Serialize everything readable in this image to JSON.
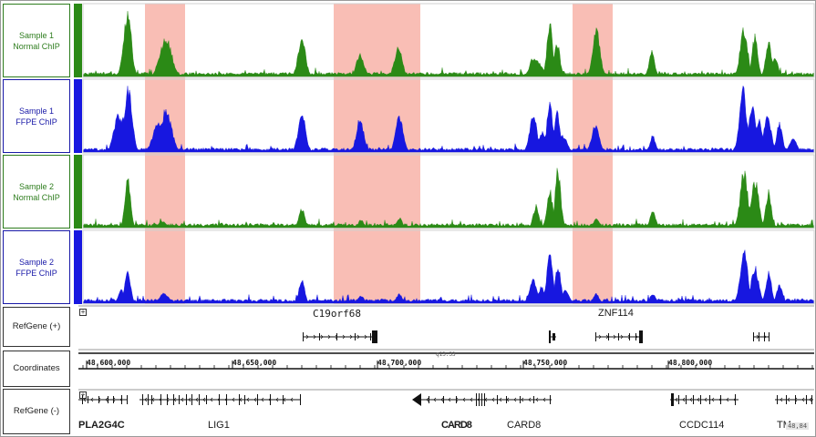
{
  "tracks": {
    "sample1_normal": {
      "line1": "Sample 1",
      "line2": "Normal ChIP",
      "color": "#2b8a16"
    },
    "sample1_ffpe": {
      "line1": "Sample 1",
      "line2": "FFPE ChIP",
      "color": "#1717e0"
    },
    "sample2_normal": {
      "line1": "Sample 2",
      "line2": "Normal ChIP",
      "color": "#2b8a16"
    },
    "sample2_ffpe": {
      "line1": "Sample 2",
      "line2": "FFPE ChIP",
      "color": "#1717e0"
    },
    "refgene_plus": {
      "label": "RefGene (+)"
    },
    "coordinates": {
      "label": "Coordinates"
    },
    "refgene_minus": {
      "label": "RefGene (-)"
    }
  },
  "highlight_color": "#f8b3a8",
  "coordinates": {
    "ticks": [
      "48,600,000",
      "48,650,000",
      "48,700,000",
      "48,750,000",
      "48,800,000"
    ],
    "band": "q13.33",
    "end_label": "48,84"
  },
  "genes_plus": {
    "c19orf68": "C19orf68",
    "znf114": "ZNF114"
  },
  "genes_minus": {
    "pla2g4c": "PLA2G4C",
    "lig1": "LIG1",
    "card8_overlap": "CARD8",
    "card8": "CARD8",
    "ccdc114": "CCDC114",
    "tmem": "TM"
  }
}
